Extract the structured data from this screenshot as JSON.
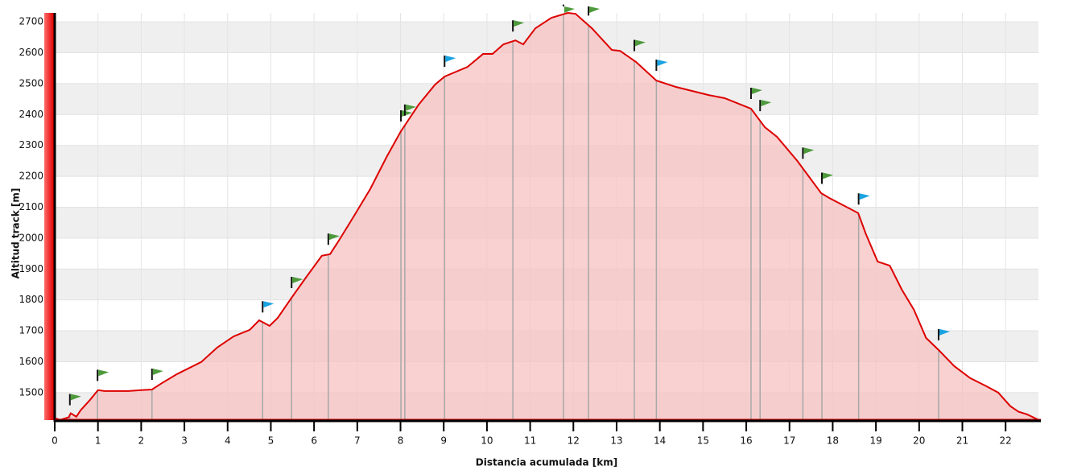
{
  "chart_data": {
    "type": "area",
    "x_label": "Distancia acumulada [km]",
    "y_label": "Altitud track [m]",
    "xlim": [
      0,
      22.76
    ],
    "ylim": [
      1411,
      2729
    ],
    "xticks": [
      0,
      1,
      2,
      3,
      4,
      5,
      6,
      7,
      8,
      9,
      10,
      11,
      12,
      13,
      14,
      15,
      16,
      17,
      18,
      19,
      20,
      21,
      22
    ],
    "yticks": [
      1500,
      1600,
      1700,
      1800,
      1900,
      2000,
      2100,
      2200,
      2300,
      2400,
      2500,
      2600,
      2700
    ],
    "grid": true,
    "series": [
      {
        "color": "#dd0000",
        "fill": "#f7c2c2",
        "x": [
          0,
          0.13,
          0.32,
          0.37,
          0.5,
          0.6,
          0.82,
          1.0,
          1.15,
          1.71,
          2.0,
          2.25,
          2.46,
          2.83,
          3.39,
          3.76,
          4.14,
          4.51,
          4.73,
          4.97,
          5.16,
          5.48,
          5.81,
          6.18,
          6.37,
          6.56,
          6.93,
          7.3,
          7.68,
          8.01,
          8.42,
          8.8,
          9.02,
          9.55,
          9.91,
          10.13,
          10.38,
          10.66,
          10.84,
          11.12,
          11.49,
          11.87,
          12.05,
          12.43,
          12.89,
          13.08,
          13.45,
          13.92,
          14.38,
          15.13,
          15.5,
          16.11,
          16.43,
          16.71,
          17.18,
          17.73,
          17.92,
          18.59,
          18.76,
          19.04,
          19.32,
          19.6,
          19.88,
          20.16,
          20.45,
          20.81,
          21.18,
          21.55,
          21.83,
          22.11,
          22.3,
          22.49,
          22.76
        ],
        "values": [
          1417,
          1412,
          1420,
          1433,
          1422,
          1443,
          1477,
          1508,
          1505,
          1505,
          1508,
          1510,
          1529,
          1560,
          1599,
          1646,
          1682,
          1703,
          1734,
          1716,
          1742,
          1807,
          1872,
          1943,
          1948,
          1989,
          2073,
          2159,
          2263,
          2346,
          2432,
          2497,
          2523,
          2554,
          2596,
          2596,
          2627,
          2640,
          2627,
          2679,
          2713,
          2729,
          2726,
          2679,
          2609,
          2606,
          2570,
          2510,
          2489,
          2463,
          2453,
          2419,
          2359,
          2328,
          2250,
          2146,
          2130,
          2081,
          2016,
          1924,
          1911,
          1833,
          1768,
          1677,
          1638,
          1586,
          1547,
          1521,
          1500,
          1456,
          1438,
          1430,
          1412
        ]
      }
    ],
    "waypoints": {
      "x": [
        0.35,
        0.99,
        2.25,
        4.81,
        5.48,
        6.33,
        8.01,
        8.1,
        9.02,
        10.6,
        11.77,
        12.35,
        13.41,
        13.92,
        16.11,
        16.32,
        17.31,
        17.75,
        18.6,
        20.45
      ],
      "colors": [
        "#4e9a3c",
        "#4e9a3c",
        "#4e9a3c",
        "#1aa3e0",
        "#4e9a3c",
        "#4e9a3c",
        "#4e9a3c",
        "#4e9a3c",
        "#1aa3e0",
        "#4e9a3c",
        "#4e9a3c",
        "#4e9a3c",
        "#4e9a3c",
        "#1aa3e0",
        "#4e9a3c",
        "#4e9a3c",
        "#4e9a3c",
        "#4e9a3c",
        "#1aa3e0",
        "#1aa3e0"
      ]
    }
  }
}
